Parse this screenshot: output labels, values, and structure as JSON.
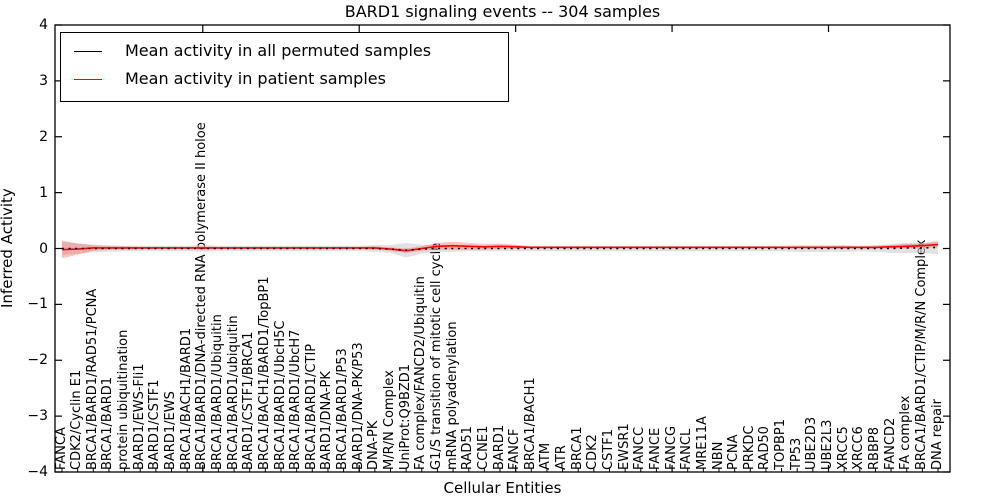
{
  "figure": {
    "title": "BARD1 signaling events -- 304 samples",
    "xlabel": "Cellular Entities",
    "ylabel": "Inferred Activity"
  },
  "legend": {
    "items": [
      {
        "label": "Mean activity in all permuted samples",
        "color": "#000000"
      },
      {
        "label": "Mean activity in patient samples",
        "color": "#ff0000"
      }
    ]
  },
  "chart_data": {
    "type": "line",
    "title": "BARD1 signaling events -- 304 samples",
    "xlabel": "Cellular Entities",
    "ylabel": "Inferred Activity",
    "ylim": [
      -4,
      4
    ],
    "yticks": [
      4,
      3,
      2,
      1,
      0,
      -1,
      -2,
      -3,
      -4
    ],
    "ytick_labels": [
      "4",
      "3",
      "2",
      "1",
      "0",
      "−1",
      "−2",
      "−3",
      "−4"
    ],
    "xtick_major_indices": [
      9,
      19,
      29,
      39,
      49
    ],
    "grid": false,
    "legend_position": "upper left",
    "categories": [
      "FANCA",
      "CDK2/Cyclin E1",
      "BRCA1/BARD1/RAD51/PCNA",
      "BRCA1/BARD1",
      "protein ubiquitination",
      "BARD1/EWS-Fli1",
      "BARD1/CSTF1",
      "BARD1/EWS",
      "BRCA1/BACH1/BARD1",
      "BRCA1/BARD1/DNA-directed RNA polymerase II holoe",
      "BRCA1/BARD1/Ubiquitin",
      "BRCA1/BARD1/ubiquitin",
      "BARD1/CSTF1/BRCA1",
      "BRCA1/BACH1/BARD1/TopBP1",
      "BRCA1/BARD1/UbcH5C",
      "BRCA1/BARD1/UbcH7",
      "BRCA1/BARD1/CTIP",
      "BARD1/DNA-PK",
      "BRCA1/BARD1/P53",
      "BARD1/DNA-PK/P53",
      "DNA-PK",
      "M/R/N Complex",
      "UniProt:Q9BZD1",
      "FA complex/FANCD2/Ubiquitin",
      "G1/S transition of mitotic cell cycle",
      "mRNA polyadenylation",
      "RAD51",
      "CCNE1",
      "BARD1",
      "FANCF",
      "BRCA1/BACH1",
      "ATM",
      "ATR",
      "BRCA1",
      "CDK2",
      "CSTF1",
      "EWSR1",
      "FANCC",
      "FANCE",
      "FANCG",
      "FANCL",
      "MRE11A",
      "NBN",
      "PCNA",
      "PRKDC",
      "RAD50",
      "TOPBP1",
      "TP53",
      "UBE2D3",
      "UBE2L3",
      "XRCC5",
      "XRCC6",
      "RBBP8",
      "FANCD2",
      "FA complex",
      "BRCA1/BARD1/CTIP/M/R/N Complex",
      "DNA repair"
    ],
    "series": [
      {
        "name": "Mean activity in all permuted samples",
        "color": "#000000",
        "style": "dotted",
        "values": [
          0,
          0,
          0,
          0,
          0,
          0,
          0,
          0,
          0,
          0,
          0,
          0,
          0,
          0,
          0,
          0,
          0,
          0,
          0,
          0,
          0,
          -0.01,
          -0.03,
          -0.01,
          0,
          0,
          0,
          0,
          0,
          0,
          0,
          0,
          0,
          0,
          0,
          0,
          0,
          0,
          0,
          0,
          0,
          0,
          0,
          0,
          0,
          0,
          0,
          0,
          0,
          0,
          0,
          0,
          0,
          0,
          0.01,
          0.01,
          0.02
        ]
      },
      {
        "name": "Mean activity in patient samples",
        "color": "#ff0000",
        "style": "solid",
        "values": [
          -0.02,
          -0.01,
          0.01,
          0.01,
          0.01,
          0.01,
          0.01,
          0.01,
          0.01,
          0.01,
          0.01,
          0.01,
          0.01,
          0.01,
          0.01,
          0.01,
          0.01,
          0.01,
          0.01,
          0.01,
          0.01,
          -0.01,
          -0.04,
          0,
          0.04,
          0.05,
          0.04,
          0.03,
          0.04,
          0.03,
          0.02,
          0.02,
          0.02,
          0.02,
          0.02,
          0.02,
          0.02,
          0.02,
          0.02,
          0.02,
          0.02,
          0.02,
          0.02,
          0.02,
          0.02,
          0.02,
          0.02,
          0.02,
          0.02,
          0.02,
          0.02,
          0.02,
          0.02,
          0.03,
          0.04,
          0.05,
          0.07
        ]
      }
    ],
    "bands": [
      {
        "name": "permuted-samples-band",
        "color": "#c8c8c8",
        "opacity": 0.55,
        "follows_series": 0,
        "half_widths": [
          0.12,
          0.09,
          0.07,
          0.06,
          0.05,
          0.05,
          0.05,
          0.05,
          0.05,
          0.06,
          0.05,
          0.05,
          0.05,
          0.05,
          0.05,
          0.05,
          0.05,
          0.05,
          0.05,
          0.05,
          0.06,
          0.07,
          0.13,
          0.08,
          0.06,
          0.06,
          0.05,
          0.05,
          0.05,
          0.05,
          0.05,
          0.05,
          0.05,
          0.05,
          0.05,
          0.05,
          0.05,
          0.05,
          0.05,
          0.05,
          0.05,
          0.05,
          0.05,
          0.05,
          0.05,
          0.05,
          0.05,
          0.06,
          0.06,
          0.06,
          0.06,
          0.05,
          0.06,
          0.08,
          0.09,
          0.09,
          0.12
        ]
      },
      {
        "name": "patient-samples-band",
        "color": "#ff4040",
        "opacity": 0.32,
        "follows_series": 1,
        "half_widths": [
          0.16,
          0.1,
          0.05,
          0.03,
          0.03,
          0.02,
          0.02,
          0.02,
          0.02,
          0.03,
          0.02,
          0.02,
          0.02,
          0.02,
          0.02,
          0.02,
          0.02,
          0.02,
          0.02,
          0.02,
          0.03,
          0.03,
          0.04,
          0.04,
          0.06,
          0.07,
          0.06,
          0.05,
          0.05,
          0.04,
          0.02,
          0.02,
          0.02,
          0.02,
          0.02,
          0.02,
          0.02,
          0.02,
          0.02,
          0.02,
          0.02,
          0.02,
          0.02,
          0.02,
          0.02,
          0.02,
          0.02,
          0.02,
          0.02,
          0.02,
          0.03,
          0.02,
          0.03,
          0.03,
          0.04,
          0.04,
          0.05
        ]
      }
    ]
  }
}
